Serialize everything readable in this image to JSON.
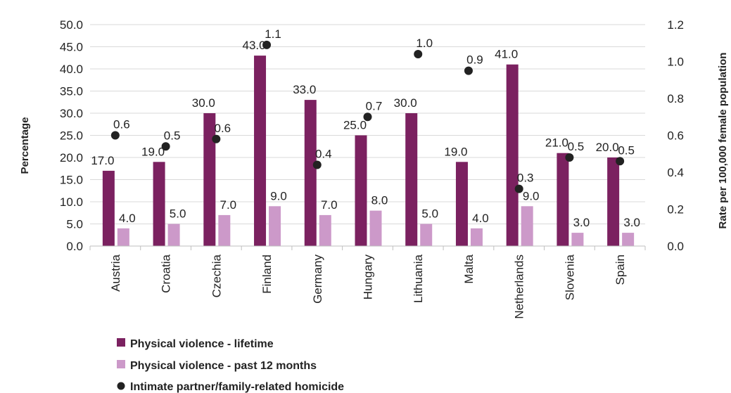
{
  "chart_data": {
    "type": "bar",
    "title": "",
    "categories": [
      "Austria",
      "Croatia",
      "Czechia",
      "Finland",
      "Germany",
      "Hungary",
      "Lithuania",
      "Malta",
      "Netherlands",
      "Slovenia",
      "Spain"
    ],
    "series": [
      {
        "name": "Physical violence - lifetime",
        "type": "bar",
        "axis": "left",
        "color": "#7b2160",
        "values": [
          17.0,
          19.0,
          30.0,
          43.0,
          33.0,
          25.0,
          30.0,
          19.0,
          41.0,
          21.0,
          20.0
        ],
        "labels": [
          "17.0",
          "19.0",
          "30.0",
          "43.0",
          "33.0",
          "25.0",
          "30.0",
          "19.0",
          "41.0",
          "21.0",
          "20.0"
        ]
      },
      {
        "name": "Physical violence - past 12 months",
        "type": "bar",
        "axis": "left",
        "color": "#cc99c9",
        "values": [
          4.0,
          5.0,
          7.0,
          9.0,
          7.0,
          8.0,
          5.0,
          4.0,
          9.0,
          3.0,
          3.0
        ],
        "labels": [
          "4.0",
          "5.0",
          "7.0",
          "9.0",
          "7.0",
          "8.0",
          "5.0",
          "4.0",
          "9.0",
          "3.0",
          "3.0"
        ]
      },
      {
        "name": "Intimate partner/family-related homicide",
        "type": "scatter",
        "axis": "right",
        "color": "#222222",
        "values": [
          0.6,
          0.54,
          0.58,
          1.09,
          0.44,
          0.7,
          1.04,
          0.95,
          0.31,
          0.48,
          0.46
        ],
        "labels": [
          "0.6",
          "0.5",
          "0.6",
          "1.1",
          "0.4",
          "0.7",
          "1.0",
          "0.9",
          "0.3",
          "0.5",
          "0.5"
        ]
      }
    ],
    "ylabel": "Percentage",
    "y2label": "Rate per 100,000 female population",
    "ylim": [
      0,
      50
    ],
    "y2lim": [
      0,
      1.2
    ],
    "yticks": [
      "0.0",
      "5.0",
      "10.0",
      "15.0",
      "20.0",
      "25.0",
      "30.0",
      "35.0",
      "40.0",
      "45.0",
      "50.0"
    ],
    "y2ticks": [
      "0.0",
      "0.2",
      "0.4",
      "0.6",
      "0.8",
      "1.0",
      "1.2"
    ],
    "grid": true,
    "legend": "bottom-left"
  }
}
